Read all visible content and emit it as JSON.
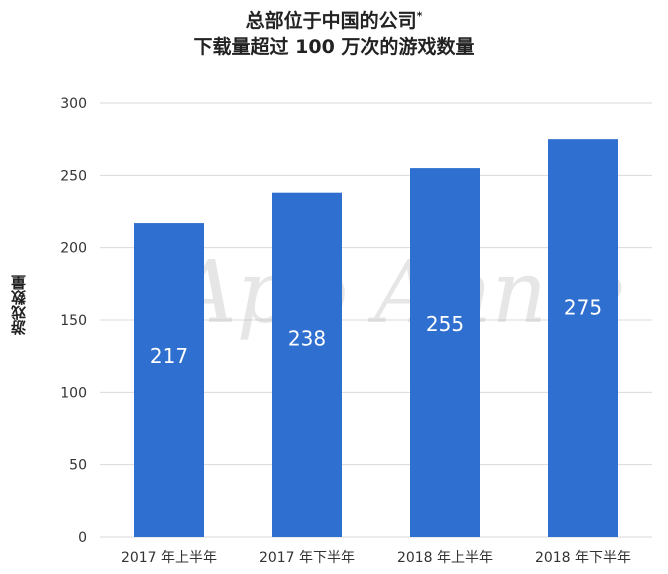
{
  "chart_data": {
    "type": "bar",
    "title_line1": "总部位于中国的公司",
    "title_mark": "*",
    "title_line2": "下载量超过 100 万次的游戏数量",
    "ylabel": "游戏数量",
    "xlabel": "",
    "categories": [
      "2017 年上半年",
      "2017 年下半年",
      "2018 年上半年",
      "2018 年下半年"
    ],
    "values": [
      217,
      238,
      255,
      275
    ],
    "ylim": [
      0,
      300
    ],
    "yticks": [
      0,
      50,
      100,
      150,
      200,
      250,
      300
    ],
    "grid": true,
    "bar_color": "#2f6fcf",
    "grid_color": "#d9d9d9",
    "watermark": "App Annie"
  }
}
